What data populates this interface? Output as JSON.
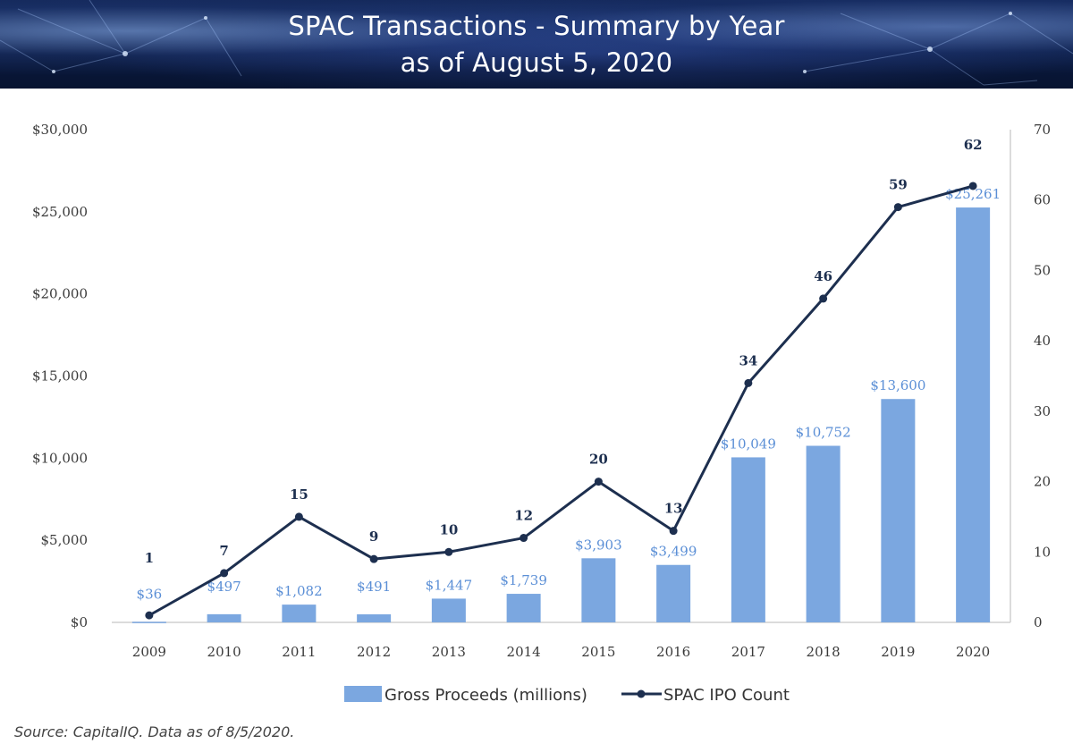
{
  "header": {
    "title_line1": "SPAC Transactions - Summary by Year",
    "title_line2": "as of August 5, 2020"
  },
  "footer": {
    "source": "Source: CapitalIQ. Data as of 8/5/2020."
  },
  "colors": {
    "bar": "#7ba7e0",
    "bar_label": "#5b8fd6",
    "line": "#1d2f4f",
    "axis": "#cfcfcf"
  },
  "chart_data": {
    "type": "bar",
    "categories": [
      "2009",
      "2010",
      "2011",
      "2012",
      "2013",
      "2014",
      "2015",
      "2016",
      "2017",
      "2018",
      "2019",
      "2020"
    ],
    "series": [
      {
        "name": "Gross Proceeds (millions)",
        "type": "bar",
        "axis": "left",
        "values": [
          36,
          497,
          1082,
          491,
          1447,
          1739,
          3903,
          3499,
          10049,
          10752,
          13600,
          25261
        ],
        "labels": [
          "$36",
          "$497",
          "$1,082",
          "$491",
          "$1,447",
          "$1,739",
          "$3,903",
          "$3,499",
          "$10,049",
          "$10,752",
          "$13,600",
          "$25,261"
        ]
      },
      {
        "name": "SPAC IPO Count",
        "type": "line",
        "axis": "right",
        "values": [
          1,
          7,
          15,
          9,
          10,
          12,
          20,
          13,
          34,
          46,
          59,
          62
        ],
        "labels": [
          "1",
          "7",
          "15",
          "9",
          "10",
          "12",
          "20",
          "13",
          "34",
          "46",
          "59",
          "62"
        ]
      }
    ],
    "y_left": {
      "lim": [
        0,
        30000
      ],
      "ticks": [
        0,
        5000,
        10000,
        15000,
        20000,
        25000,
        30000
      ],
      "tick_labels": [
        "$0",
        "$5,000",
        "$10,000",
        "$15,000",
        "$20,000",
        "$25,000",
        "$30,000"
      ]
    },
    "y_right": {
      "lim": [
        0,
        70
      ],
      "ticks": [
        0,
        10,
        20,
        30,
        40,
        50,
        60,
        70
      ],
      "tick_labels": [
        "0",
        "10",
        "20",
        "30",
        "40",
        "50",
        "60",
        "70"
      ]
    },
    "grid": false,
    "legend_position": "bottom"
  }
}
